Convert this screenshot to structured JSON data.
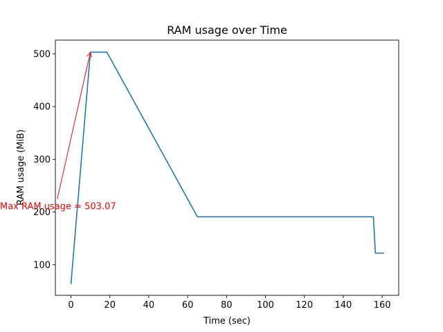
{
  "chart_data": {
    "type": "line",
    "title": "RAM usage over Time",
    "xlabel": "Time (sec)",
    "ylabel": "RAM usage (MiB)",
    "xlim": [
      -8.0,
      168.5
    ],
    "ylim": [
      42,
      526
    ],
    "xticks": [
      0,
      20,
      40,
      60,
      80,
      100,
      120,
      140,
      160
    ],
    "yticks": [
      100,
      200,
      300,
      400,
      500
    ],
    "grid": false,
    "series": [
      {
        "color": "#1f77b4",
        "x": [
          0,
          10,
          18.5,
          65,
          155.5,
          156.5,
          161
        ],
        "y": [
          63,
          503.07,
          503.07,
          191,
          191,
          122,
          122
        ]
      }
    ],
    "annotation": {
      "text": "Max RAM usage = 503.07",
      "color": "#ff0000",
      "point": [
        10,
        503.07
      ],
      "text_anchor_point": [
        -7,
        225
      ]
    }
  }
}
